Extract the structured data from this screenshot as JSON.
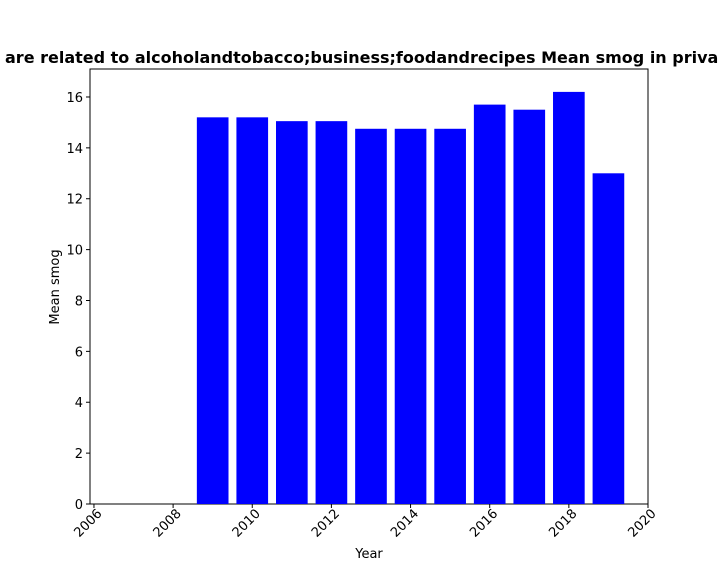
{
  "chart_data": {
    "type": "bar",
    "title": "are related to alcoholandtobacco;business;foodandrecipes Mean smog in priva",
    "xlabel": "Year",
    "ylabel": "Mean smog",
    "x": [
      2009,
      2010,
      2011,
      2012,
      2013,
      2014,
      2015,
      2016,
      2017,
      2018,
      2019
    ],
    "values": [
      15.2,
      15.2,
      15.05,
      15.05,
      14.75,
      14.75,
      14.75,
      15.7,
      15.5,
      16.2,
      13.0
    ],
    "xlim": [
      2005.9,
      2020
    ],
    "ylim": [
      0,
      17.1
    ],
    "xticks": [
      2006,
      2008,
      2010,
      2012,
      2014,
      2016,
      2018,
      2020
    ],
    "yticks": [
      0,
      2,
      4,
      6,
      8,
      10,
      12,
      14,
      16
    ],
    "bar_color": "#0000ff",
    "grid": false
  }
}
